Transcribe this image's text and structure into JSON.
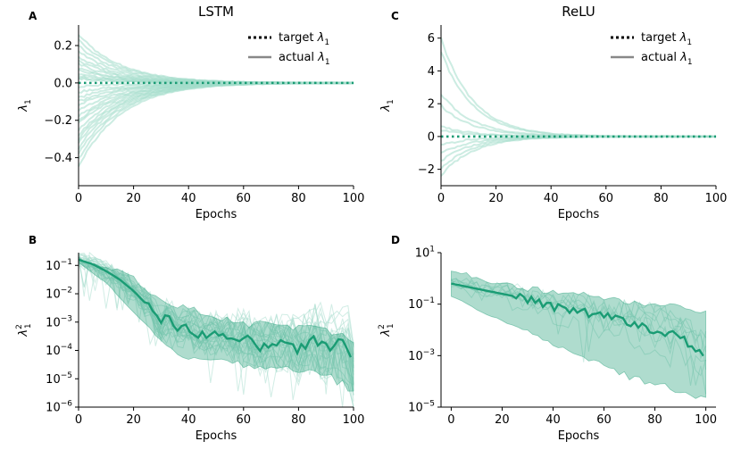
{
  "colors": {
    "accent": "#1a9c74",
    "light": "#a3dccb",
    "target": "#1a9c74",
    "legend_line": "#888888"
  },
  "legend": {
    "target": "target",
    "actual": "actual",
    "symbol": "λ",
    "subscript": "1"
  },
  "chart_data": [
    {
      "panel": "A",
      "type": "line",
      "title": "LSTM",
      "xlabel": "Epochs",
      "ylabel": "λ₁",
      "ylabel_symbol": "λ",
      "ylabel_sub": "1",
      "ylabel_sup": "",
      "xlim": [
        0,
        100
      ],
      "ylim": [
        -0.55,
        0.31
      ],
      "yscale": "linear",
      "xticks": [
        0,
        20,
        40,
        60,
        80,
        100
      ],
      "xtick_labels": [
        "0",
        "20",
        "40",
        "60",
        "80",
        "100"
      ],
      "yticks": [
        0.2,
        0.0,
        -0.2,
        -0.4
      ],
      "ytick_labels": [
        "0.2",
        "0.0",
        "−0.2",
        "−0.4"
      ],
      "target": 0.0,
      "series_starts": [
        0.26,
        0.23,
        0.2,
        0.17,
        0.14,
        0.12,
        0.1,
        0.08,
        0.07,
        0.05,
        0.04,
        0.03,
        0.02,
        -0.02,
        -0.05,
        -0.08,
        -0.1,
        -0.12,
        -0.15,
        -0.18,
        -0.2,
        -0.22,
        -0.25,
        -0.28,
        -0.3,
        -0.32,
        -0.35,
        -0.38,
        -0.41,
        -0.45
      ],
      "decay_epochs": 40
    },
    {
      "panel": "C",
      "type": "line",
      "title": "ReLU",
      "xlabel": "Epochs",
      "ylabel": "λ₁",
      "ylabel_symbol": "λ",
      "ylabel_sub": "1",
      "ylabel_sup": "",
      "xlim": [
        0,
        100
      ],
      "ylim": [
        -3,
        6.8
      ],
      "yscale": "linear",
      "xticks": [
        0,
        20,
        40,
        60,
        80,
        100
      ],
      "xtick_labels": [
        "0",
        "20",
        "40",
        "60",
        "80",
        "100"
      ],
      "yticks": [
        6,
        4,
        2,
        0,
        -2
      ],
      "ytick_labels": [
        "6",
        "4",
        "2",
        "0",
        "−2"
      ],
      "target": 0.0,
      "series_starts": [
        6.0,
        5.2,
        2.6,
        1.9,
        0.6,
        0.4,
        -0.5,
        -1.0,
        -1.5,
        -2.0,
        -2.4
      ],
      "decay_epochs": 30
    },
    {
      "panel": "B",
      "type": "line",
      "title": "",
      "xlabel": "Epochs",
      "ylabel": "λ₁²",
      "ylabel_symbol": "λ",
      "ylabel_sub": "1",
      "ylabel_sup": "2",
      "xlim": [
        0,
        100
      ],
      "ylim_log10": [
        -6,
        -0.55
      ],
      "yscale": "log",
      "xticks": [
        0,
        20,
        40,
        60,
        80,
        100
      ],
      "xtick_labels": [
        "0",
        "20",
        "40",
        "60",
        "80",
        "100"
      ],
      "yticks_log10": [
        -1,
        -2,
        -3,
        -4,
        -5,
        -6
      ],
      "ytick_base": "10",
      "ytick_exponents": [
        "−1",
        "−2",
        "−3",
        "−4",
        "−5",
        "−6"
      ],
      "median": {
        "x": [
          0,
          5,
          10,
          15,
          20,
          25,
          30,
          33,
          36,
          40,
          45,
          50,
          55,
          60,
          65,
          70,
          75,
          80,
          85,
          90,
          95,
          98,
          100
        ],
        "log10": [
          -0.8,
          -0.95,
          -1.2,
          -1.5,
          -1.9,
          -2.4,
          -3.1,
          -2.7,
          -3.3,
          -3.2,
          -3.5,
          -3.4,
          -3.6,
          -3.5,
          -3.9,
          -3.7,
          -3.8,
          -4.0,
          -3.6,
          -3.9,
          -3.7,
          -4.0,
          -4.8
        ]
      },
      "band_high": {
        "x": [
          0,
          10,
          20,
          30,
          35,
          40,
          50,
          60,
          70,
          80,
          90,
          100
        ],
        "log10": [
          -0.7,
          -1.0,
          -1.4,
          -2.3,
          -2.5,
          -2.5,
          -2.8,
          -3.1,
          -3.0,
          -3.2,
          -3.3,
          -3.6
        ]
      },
      "band_low": {
        "x": [
          0,
          10,
          20,
          30,
          35,
          40,
          50,
          60,
          70,
          80,
          90,
          100
        ],
        "log10": [
          -0.9,
          -1.6,
          -2.6,
          -3.6,
          -4.0,
          -4.2,
          -4.2,
          -4.4,
          -4.5,
          -4.6,
          -4.7,
          -5.2
        ]
      }
    },
    {
      "panel": "D",
      "type": "line",
      "title": "",
      "xlabel": "Epochs",
      "ylabel": "λ₁²",
      "ylabel_symbol": "λ",
      "ylabel_sub": "1",
      "ylabel_sup": "2",
      "xlim": [
        -4,
        104
      ],
      "ylim_log10": [
        -5,
        1
      ],
      "yscale": "log",
      "xticks": [
        0,
        20,
        40,
        60,
        80,
        100
      ],
      "xtick_labels": [
        "0",
        "20",
        "40",
        "60",
        "80",
        "100"
      ],
      "yticks_log10": [
        1,
        -1,
        -3,
        -5
      ],
      "ytick_base": "10",
      "ytick_exponents": [
        "1",
        "−1",
        "−3",
        "−5"
      ],
      "median": {
        "x": [
          0,
          5,
          10,
          20,
          30,
          40,
          50,
          60,
          70,
          80,
          90,
          95,
          100
        ],
        "log10": [
          -0.2,
          -0.3,
          -0.4,
          -0.6,
          -0.8,
          -1.1,
          -1.3,
          -1.5,
          -1.7,
          -2.0,
          -2.3,
          -2.6,
          -3.3
        ]
      },
      "band_high": {
        "x": [
          0,
          5,
          10,
          20,
          30,
          40,
          50,
          60,
          70,
          80,
          90,
          100
        ],
        "log10": [
          0.4,
          0.2,
          0.0,
          -0.2,
          -0.4,
          -0.5,
          -0.6,
          -0.8,
          -0.9,
          -1.0,
          -1.1,
          -1.3
        ]
      },
      "band_low": {
        "x": [
          0,
          5,
          10,
          20,
          30,
          40,
          50,
          60,
          70,
          80,
          90,
          100
        ],
        "log10": [
          -0.7,
          -0.9,
          -1.2,
          -1.6,
          -2.0,
          -2.5,
          -2.9,
          -3.3,
          -3.7,
          -4.0,
          -4.2,
          -4.6
        ]
      }
    }
  ]
}
